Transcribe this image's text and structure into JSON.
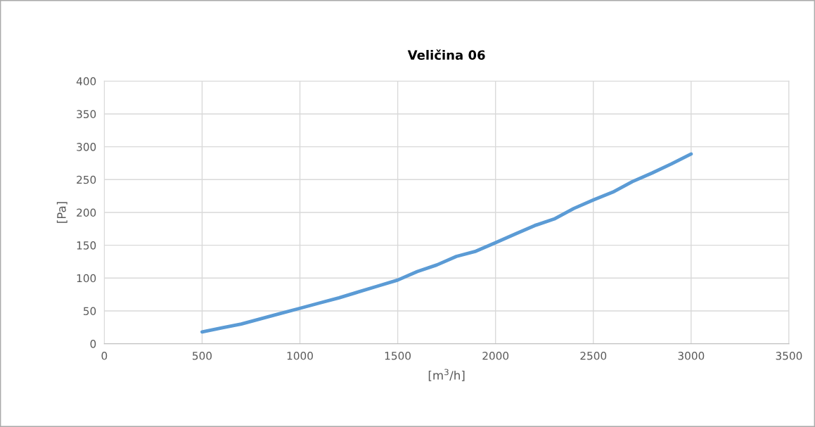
{
  "chart_data": {
    "type": "line",
    "title": "Veličina 06",
    "xlabel": "[m$^{3}$/h]",
    "ylabel": "[Pa]",
    "x": [
      500,
      600,
      700,
      800,
      900,
      1000,
      1100,
      1200,
      1300,
      1400,
      1500,
      1600,
      1700,
      1800,
      1900,
      2000,
      2100,
      2200,
      2300,
      2400,
      2500,
      2600,
      2700,
      2800,
      2900,
      3000
    ],
    "series": [
      {
        "color": "#5b9bd5",
        "values": [
          18,
          24,
          30,
          38,
          46,
          54,
          62,
          70,
          79,
          88,
          97,
          110,
          120,
          133,
          141,
          154,
          167,
          180,
          190,
          206,
          219,
          231,
          247,
          260,
          274,
          289
        ]
      }
    ],
    "xlim": [
      0,
      3500
    ],
    "xticks": [
      0,
      500,
      1000,
      1500,
      2000,
      2500,
      3000,
      3500
    ],
    "ylim": [
      0,
      400
    ],
    "yticks": [
      0,
      50,
      100,
      150,
      200,
      250,
      300,
      350,
      400
    ],
    "grid": true,
    "marker": "none",
    "line_style": "solid"
  }
}
